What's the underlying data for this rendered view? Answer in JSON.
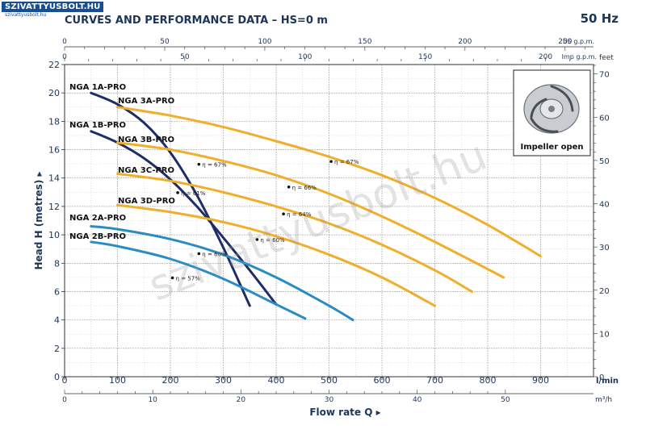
{
  "brand": {
    "name": "SZIVATTYUSBOLT.HU",
    "subtitle": "szivattyusbolt.hu"
  },
  "header": {
    "title": "CURVES AND PERFORMANCE DATA  –  HS=0 m",
    "frequency": "50 Hz"
  },
  "watermark": "szivattyusbolt.hu",
  "impeller_label": "Impeller open",
  "colors": {
    "yellow": "#f0ae2a",
    "darkblue": "#1f2d66",
    "lightblue": "#2b8cc4",
    "grid": "#9a9a9a",
    "text": "#1d3557"
  },
  "chart_data": {
    "type": "line",
    "xlabel": "Flow rate Q ▸",
    "ylabel": "Head H (metres) ▸",
    "xunit": "l/min",
    "xlim": [
      0,
      1000
    ],
    "ylim": [
      0,
      22
    ],
    "grid": true,
    "x_ticks": [
      0,
      100,
      200,
      300,
      400,
      500,
      600,
      700,
      800,
      900
    ],
    "y_ticks": [
      0,
      2,
      4,
      6,
      8,
      10,
      12,
      14,
      16,
      18,
      20,
      22
    ],
    "secondary_axes": {
      "us_gpm": {
        "label": "US g.p.m.",
        "ticks": [
          0,
          50,
          100,
          150,
          200,
          250
        ]
      },
      "imp_gpm": {
        "label": "Imp g.p.m.",
        "ticks": [
          0,
          50,
          100,
          150,
          200
        ]
      },
      "m3h": {
        "label": "m³/h",
        "ticks": [
          0,
          10,
          20,
          30,
          40,
          50
        ]
      },
      "feet": {
        "label": "feet",
        "ticks": [
          0,
          10,
          20,
          30,
          40,
          50,
          60,
          70
        ]
      }
    },
    "series": [
      {
        "name": "NGA 1A-PRO",
        "color": "darkblue",
        "x": [
          50,
          100,
          150,
          200,
          250,
          300,
          350
        ],
        "y": [
          20.0,
          19.2,
          17.9,
          15.8,
          12.8,
          9.1,
          5.0
        ]
      },
      {
        "name": "NGA 1B-PRO",
        "color": "darkblue",
        "x": [
          50,
          100,
          150,
          200,
          250,
          300,
          350,
          400
        ],
        "y": [
          17.3,
          16.5,
          15.4,
          13.9,
          12.0,
          9.8,
          7.5,
          5.1
        ]
      },
      {
        "name": "NGA 3A-PRO",
        "color": "yellow",
        "x": [
          100,
          200,
          300,
          400,
          500,
          600,
          700,
          800,
          900
        ],
        "y": [
          19.0,
          18.4,
          17.6,
          16.6,
          15.5,
          14.2,
          12.6,
          10.7,
          8.5
        ]
      },
      {
        "name": "NGA 3B-PRO",
        "color": "yellow",
        "x": [
          100,
          200,
          300,
          400,
          500,
          600,
          700,
          830
        ],
        "y": [
          16.5,
          16.0,
          15.2,
          14.2,
          12.9,
          11.3,
          9.5,
          7.0
        ]
      },
      {
        "name": "NGA 3C-PRO",
        "color": "yellow",
        "x": [
          100,
          200,
          300,
          400,
          500,
          600,
          700,
          770
        ],
        "y": [
          14.3,
          13.8,
          13.0,
          12.0,
          10.8,
          9.3,
          7.5,
          6.0
        ]
      },
      {
        "name": "NGA 3D-PRO",
        "color": "yellow",
        "x": [
          100,
          200,
          300,
          400,
          500,
          600,
          700
        ],
        "y": [
          12.1,
          11.6,
          10.9,
          9.9,
          8.6,
          7.0,
          5.0
        ]
      },
      {
        "name": "NGA 2A-PRO",
        "color": "lightblue",
        "x": [
          50,
          100,
          200,
          300,
          400,
          500,
          545
        ],
        "y": [
          10.6,
          10.4,
          9.7,
          8.6,
          7.0,
          5.0,
          4.0
        ]
      },
      {
        "name": "NGA 2B-PRO",
        "color": "lightblue",
        "x": [
          50,
          100,
          200,
          300,
          400,
          455
        ],
        "y": [
          9.5,
          9.2,
          8.3,
          6.9,
          5.1,
          4.1
        ]
      }
    ],
    "annotations": [
      {
        "text": "η = 67%",
        "x": 260,
        "y": 14.8
      },
      {
        "text": "η = 61%",
        "x": 220,
        "y": 12.8
      },
      {
        "text": "η = 67%",
        "x": 510,
        "y": 15.0
      },
      {
        "text": "η = 66%",
        "x": 430,
        "y": 13.2
      },
      {
        "text": "η = 64%",
        "x": 420,
        "y": 11.3
      },
      {
        "text": "η = 60%",
        "x": 370,
        "y": 9.5
      },
      {
        "text": "η = 60%",
        "x": 260,
        "y": 8.5
      },
      {
        "text": "η = 57%",
        "x": 210,
        "y": 6.8
      }
    ]
  }
}
